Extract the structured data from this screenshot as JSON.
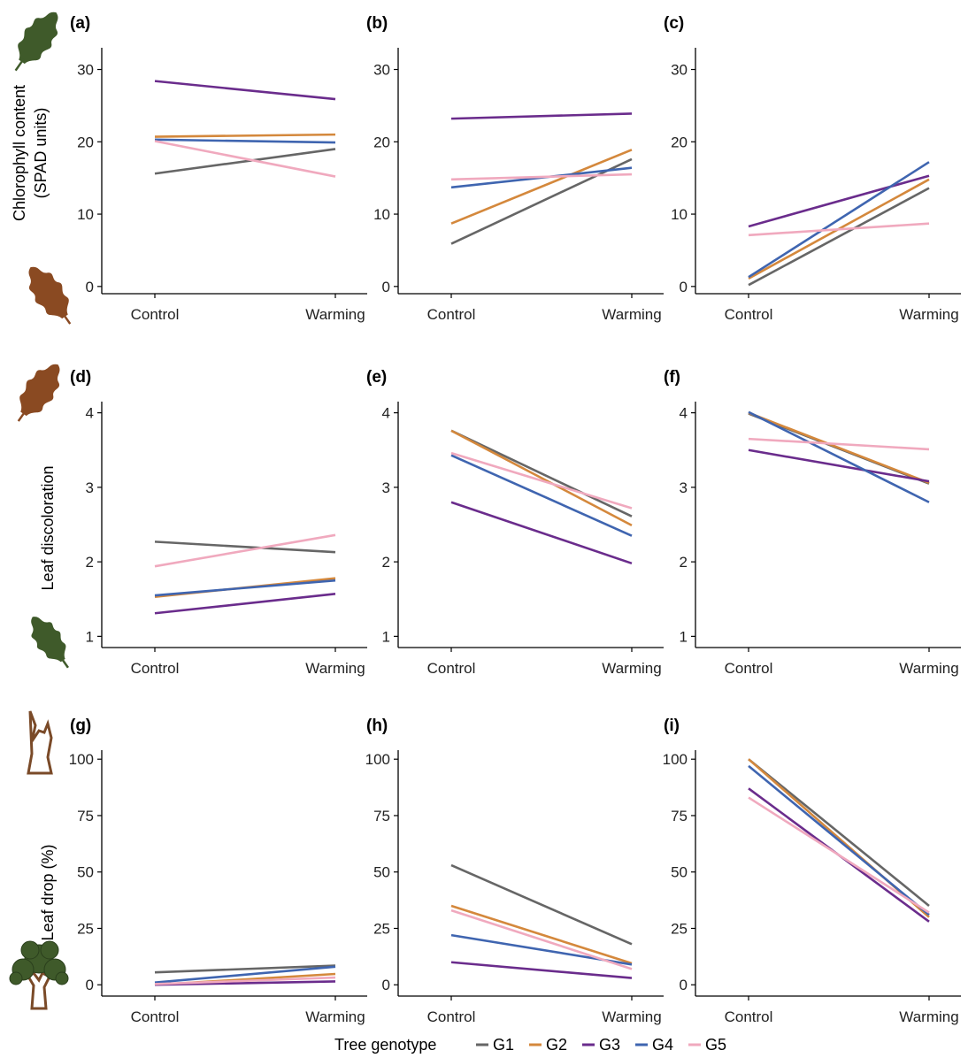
{
  "figure": {
    "legend": {
      "title": "Tree genotype",
      "entries": [
        "G1",
        "G2",
        "G3",
        "G4",
        "G5"
      ]
    },
    "row_titles": [
      [
        "Chlorophyll content",
        "(SPAD units)"
      ],
      [
        "Leaf discoloration"
      ],
      [
        "Leaf drop (%)"
      ]
    ]
  },
  "colors": {
    "G1": "#666666",
    "G2": "#d4883c",
    "G3": "#6a2c8c",
    "G4": "#3f65b0",
    "G5": "#f0a9be",
    "leaf_green": "#3f5a2a",
    "leaf_brown": "#8a4a22",
    "trunk_brown": "#7a4a28"
  },
  "chart_data": [
    {
      "panel": "(a)",
      "type": "line",
      "categories": [
        "Control",
        "Warming"
      ],
      "ylim": [
        -1,
        33
      ],
      "yticks": [
        0,
        10,
        20,
        30
      ],
      "grid": false,
      "series": [
        {
          "name": "G1",
          "values": [
            15.6,
            19.0
          ]
        },
        {
          "name": "G2",
          "values": [
            20.7,
            21.0
          ]
        },
        {
          "name": "G3",
          "values": [
            28.4,
            25.9
          ]
        },
        {
          "name": "G4",
          "values": [
            20.3,
            19.9
          ]
        },
        {
          "name": "G5",
          "values": [
            20.1,
            15.2
          ]
        }
      ]
    },
    {
      "panel": "(b)",
      "type": "line",
      "categories": [
        "Control",
        "Warming"
      ],
      "ylim": [
        -1,
        33
      ],
      "yticks": [
        0,
        10,
        20,
        30
      ],
      "grid": false,
      "series": [
        {
          "name": "G1",
          "values": [
            5.9,
            17.6
          ]
        },
        {
          "name": "G2",
          "values": [
            8.7,
            18.9
          ]
        },
        {
          "name": "G3",
          "values": [
            23.2,
            23.9
          ]
        },
        {
          "name": "G4",
          "values": [
            13.7,
            16.4
          ]
        },
        {
          "name": "G5",
          "values": [
            14.8,
            15.5
          ]
        }
      ]
    },
    {
      "panel": "(c)",
      "type": "line",
      "categories": [
        "Control",
        "Warming"
      ],
      "ylim": [
        -1,
        33
      ],
      "yticks": [
        0,
        10,
        20,
        30
      ],
      "grid": false,
      "series": [
        {
          "name": "G1",
          "values": [
            0.2,
            13.6
          ]
        },
        {
          "name": "G2",
          "values": [
            1.1,
            14.8
          ]
        },
        {
          "name": "G3",
          "values": [
            8.3,
            15.3
          ]
        },
        {
          "name": "G4",
          "values": [
            1.3,
            17.2
          ]
        },
        {
          "name": "G5",
          "values": [
            7.1,
            8.7
          ]
        }
      ]
    },
    {
      "panel": "(d)",
      "type": "line",
      "categories": [
        "Control",
        "Warming"
      ],
      "ylim": [
        0.85,
        4.15
      ],
      "yticks": [
        1,
        2,
        3,
        4
      ],
      "grid": false,
      "series": [
        {
          "name": "G1",
          "values": [
            2.27,
            2.13
          ]
        },
        {
          "name": "G2",
          "values": [
            1.53,
            1.78
          ]
        },
        {
          "name": "G3",
          "values": [
            1.31,
            1.57
          ]
        },
        {
          "name": "G4",
          "values": [
            1.55,
            1.75
          ]
        },
        {
          "name": "G5",
          "values": [
            1.94,
            2.36
          ]
        }
      ]
    },
    {
      "panel": "(e)",
      "type": "line",
      "categories": [
        "Control",
        "Warming"
      ],
      "ylim": [
        0.85,
        4.15
      ],
      "yticks": [
        1,
        2,
        3,
        4
      ],
      "grid": false,
      "series": [
        {
          "name": "G1",
          "values": [
            3.76,
            2.61
          ]
        },
        {
          "name": "G2",
          "values": [
            3.76,
            2.49
          ]
        },
        {
          "name": "G3",
          "values": [
            2.8,
            1.98
          ]
        },
        {
          "name": "G4",
          "values": [
            3.43,
            2.35
          ]
        },
        {
          "name": "G5",
          "values": [
            3.46,
            2.72
          ]
        }
      ]
    },
    {
      "panel": "(f)",
      "type": "line",
      "categories": [
        "Control",
        "Warming"
      ],
      "ylim": [
        0.85,
        4.15
      ],
      "yticks": [
        1,
        2,
        3,
        4
      ],
      "grid": false,
      "series": [
        {
          "name": "G1",
          "values": [
            3.99,
            3.05
          ]
        },
        {
          "name": "G2",
          "values": [
            4.0,
            3.06
          ]
        },
        {
          "name": "G3",
          "values": [
            3.5,
            3.08
          ]
        },
        {
          "name": "G4",
          "values": [
            4.01,
            2.8
          ]
        },
        {
          "name": "G5",
          "values": [
            3.65,
            3.51
          ]
        }
      ]
    },
    {
      "panel": "(g)",
      "type": "line",
      "categories": [
        "Control",
        "Warming"
      ],
      "ylim": [
        -5,
        104
      ],
      "yticks": [
        0,
        25,
        50,
        75,
        100
      ],
      "grid": false,
      "series": [
        {
          "name": "G1",
          "values": [
            5.5,
            8.5
          ]
        },
        {
          "name": "G2",
          "values": [
            0.0,
            4.8
          ]
        },
        {
          "name": "G3",
          "values": [
            0.0,
            1.5
          ]
        },
        {
          "name": "G4",
          "values": [
            1.0,
            8.0
          ]
        },
        {
          "name": "G5",
          "values": [
            0.3,
            3.2
          ]
        }
      ]
    },
    {
      "panel": "(h)",
      "type": "line",
      "categories": [
        "Control",
        "Warming"
      ],
      "ylim": [
        -5,
        104
      ],
      "yticks": [
        0,
        25,
        50,
        75,
        100
      ],
      "grid": false,
      "series": [
        {
          "name": "G1",
          "values": [
            53,
            18
          ]
        },
        {
          "name": "G2",
          "values": [
            35,
            9.5
          ]
        },
        {
          "name": "G3",
          "values": [
            10,
            3
          ]
        },
        {
          "name": "G4",
          "values": [
            22,
            9
          ]
        },
        {
          "name": "G5",
          "values": [
            33,
            7
          ]
        }
      ]
    },
    {
      "panel": "(i)",
      "type": "line",
      "categories": [
        "Control",
        "Warming"
      ],
      "ylim": [
        -5,
        104
      ],
      "yticks": [
        0,
        25,
        50,
        75,
        100
      ],
      "grid": false,
      "series": [
        {
          "name": "G1",
          "values": [
            100,
            35
          ]
        },
        {
          "name": "G2",
          "values": [
            100,
            30
          ]
        },
        {
          "name": "G3",
          "values": [
            87,
            28
          ]
        },
        {
          "name": "G4",
          "values": [
            97,
            31
          ]
        },
        {
          "name": "G5",
          "values": [
            83,
            32
          ]
        }
      ]
    }
  ]
}
